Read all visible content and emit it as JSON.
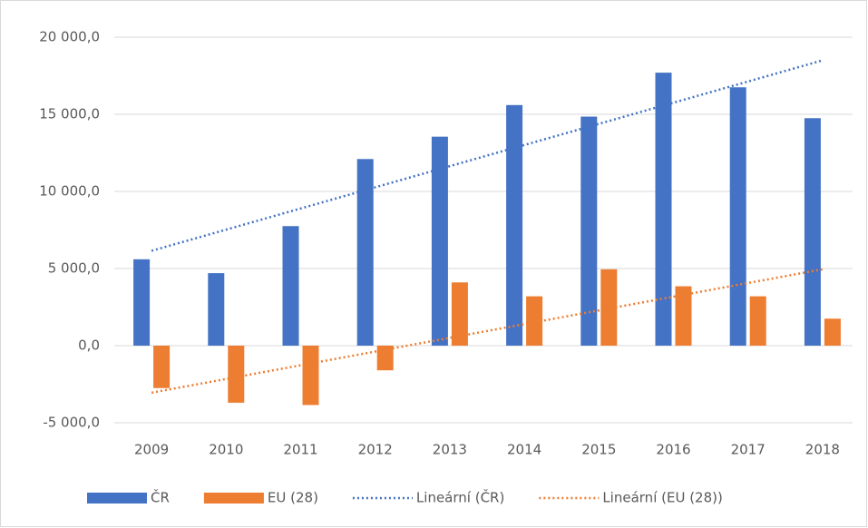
{
  "chart_data": {
    "type": "bar",
    "categories": [
      "2009",
      "2010",
      "2011",
      "2012",
      "2013",
      "2014",
      "2015",
      "2016",
      "2017",
      "2018"
    ],
    "series": [
      {
        "name": "ČR",
        "type": "bar",
        "color": "#4472c4",
        "values": [
          5600,
          4700,
          7750,
          12100,
          13550,
          15600,
          14850,
          17700,
          16750,
          14750
        ]
      },
      {
        "name": "EU (28)",
        "type": "bar",
        "color": "#ed7d31",
        "values": [
          -2750,
          -3700,
          -3850,
          -1600,
          4100,
          3200,
          4950,
          3850,
          3200,
          1750
        ]
      },
      {
        "name": "Lineární (ČR)",
        "type": "line",
        "style": "dotted",
        "color": "#4472c4",
        "values": [
          6150,
          7522,
          8894,
          10266,
          11638,
          13010,
          14382,
          15754,
          17126,
          18500
        ]
      },
      {
        "name": "Lineární (EU (28))",
        "type": "line",
        "style": "dotted",
        "color": "#ed7d31",
        "values": [
          -3050,
          -2161,
          -1272,
          -383,
          506,
          1395,
          2284,
          3173,
          4062,
          4950
        ]
      }
    ],
    "ylim": [
      -5000,
      20000
    ],
    "yticks": [
      {
        "value": -5000,
        "label": "-5 000,0"
      },
      {
        "value": 0,
        "label": "0,0"
      },
      {
        "value": 5000,
        "label": "5 000,0"
      },
      {
        "value": 10000,
        "label": "10 000,0"
      },
      {
        "value": 15000,
        "label": "15 000,0"
      },
      {
        "value": 20000,
        "label": "20 000,0"
      }
    ],
    "grid": true,
    "legend": "bottom"
  }
}
